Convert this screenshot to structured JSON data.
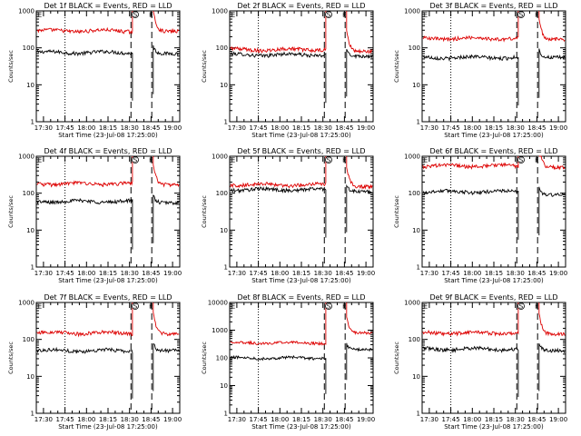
{
  "shared": {
    "xlabel": "Start Time (23-Jul-08 17:25:00)",
    "ylabel": "Counts/sec",
    "x_ticks": [
      "17:30",
      "17:45",
      "18:00",
      "18:15",
      "18:30",
      "18:45",
      "19:00"
    ],
    "x_tick_minutes": [
      5,
      20,
      35,
      50,
      65,
      80,
      95
    ],
    "xlim_minutes": [
      0,
      100
    ],
    "markers": [
      {
        "label": "E",
        "minute": 0
      },
      {
        "label": "S",
        "minute": 69
      },
      {
        "label": "E",
        "minute": 80
      }
    ],
    "vlines": [
      {
        "minute": 20,
        "style": "dotted"
      },
      {
        "minute": 66,
        "style": "dashed"
      },
      {
        "minute": 80.5,
        "style": "dashed"
      }
    ],
    "colors": {
      "events": "#000000",
      "lld": "#dd0000"
    },
    "yscale": "log"
  },
  "chart_data": [
    {
      "type": "line",
      "title": "Det 1f BLACK = Events, RED = LLD",
      "ylim": [
        1,
        1000
      ],
      "y_ticks": [
        "1",
        "10",
        "100",
        "1000"
      ],
      "series": [
        {
          "name": "Events",
          "before": 75,
          "after": 70
        },
        {
          "name": "LLD",
          "before": 290,
          "after": 280
        }
      ]
    },
    {
      "type": "line",
      "title": "Det 2f BLACK = Events, RED = LLD",
      "ylim": [
        1,
        1000
      ],
      "y_ticks": [
        "1",
        "10",
        "100",
        "1000"
      ],
      "series": [
        {
          "name": "Events",
          "before": 65,
          "after": 60
        },
        {
          "name": "LLD",
          "before": 90,
          "after": 80
        }
      ]
    },
    {
      "type": "line",
      "title": "Det 3f BLACK = Events, RED = LLD",
      "ylim": [
        1,
        1000
      ],
      "y_ticks": [
        "1",
        "10",
        "100",
        "1000"
      ],
      "series": [
        {
          "name": "Events",
          "before": 55,
          "after": 55
        },
        {
          "name": "LLD",
          "before": 180,
          "after": 170
        }
      ]
    },
    {
      "type": "line",
      "title": "Det 4f BLACK = Events, RED = LLD",
      "ylim": [
        1,
        1000
      ],
      "y_ticks": [
        "1",
        "10",
        "100",
        "1000"
      ],
      "series": [
        {
          "name": "Events",
          "before": 60,
          "after": 55
        },
        {
          "name": "LLD",
          "before": 180,
          "after": 170
        }
      ]
    },
    {
      "type": "line",
      "title": "Det 5f BLACK = Events, RED = LLD",
      "ylim": [
        1,
        1000
      ],
      "y_ticks": [
        "1",
        "10",
        "100",
        "1000"
      ],
      "series": [
        {
          "name": "Events",
          "before": 125,
          "after": 110
        },
        {
          "name": "LLD",
          "before": 170,
          "after": 150
        }
      ]
    },
    {
      "type": "line",
      "title": "Det 6f BLACK = Events, RED = LLD",
      "ylim": [
        1,
        1000
      ],
      "y_ticks": [
        "1",
        "10",
        "100",
        "1000"
      ],
      "series": [
        {
          "name": "Events",
          "before": 110,
          "after": 90
        },
        {
          "name": "LLD",
          "before": 550,
          "after": 500
        }
      ]
    },
    {
      "type": "line",
      "title": "Det 7f BLACK = Events, RED = LLD",
      "ylim": [
        1,
        1000
      ],
      "y_ticks": [
        "1",
        "10",
        "100",
        "1000"
      ],
      "series": [
        {
          "name": "Events",
          "before": 50,
          "after": 50
        },
        {
          "name": "LLD",
          "before": 150,
          "after": 140
        }
      ]
    },
    {
      "type": "line",
      "title": "Det 8f BLACK = Events, RED = LLD",
      "ylim": [
        1,
        10000
      ],
      "y_ticks": [
        "1",
        "10",
        "100",
        "1000",
        "10000"
      ],
      "series": [
        {
          "name": "Events",
          "before": 100,
          "after": 200
        },
        {
          "name": "LLD",
          "before": 350,
          "after": 800
        }
      ]
    },
    {
      "type": "line",
      "title": "Det 9f BLACK = Events, RED = LLD",
      "ylim": [
        1,
        1000
      ],
      "y_ticks": [
        "1",
        "10",
        "100",
        "1000"
      ],
      "series": [
        {
          "name": "Events",
          "before": 55,
          "after": 50
        },
        {
          "name": "LLD",
          "before": 150,
          "after": 140
        }
      ]
    }
  ]
}
